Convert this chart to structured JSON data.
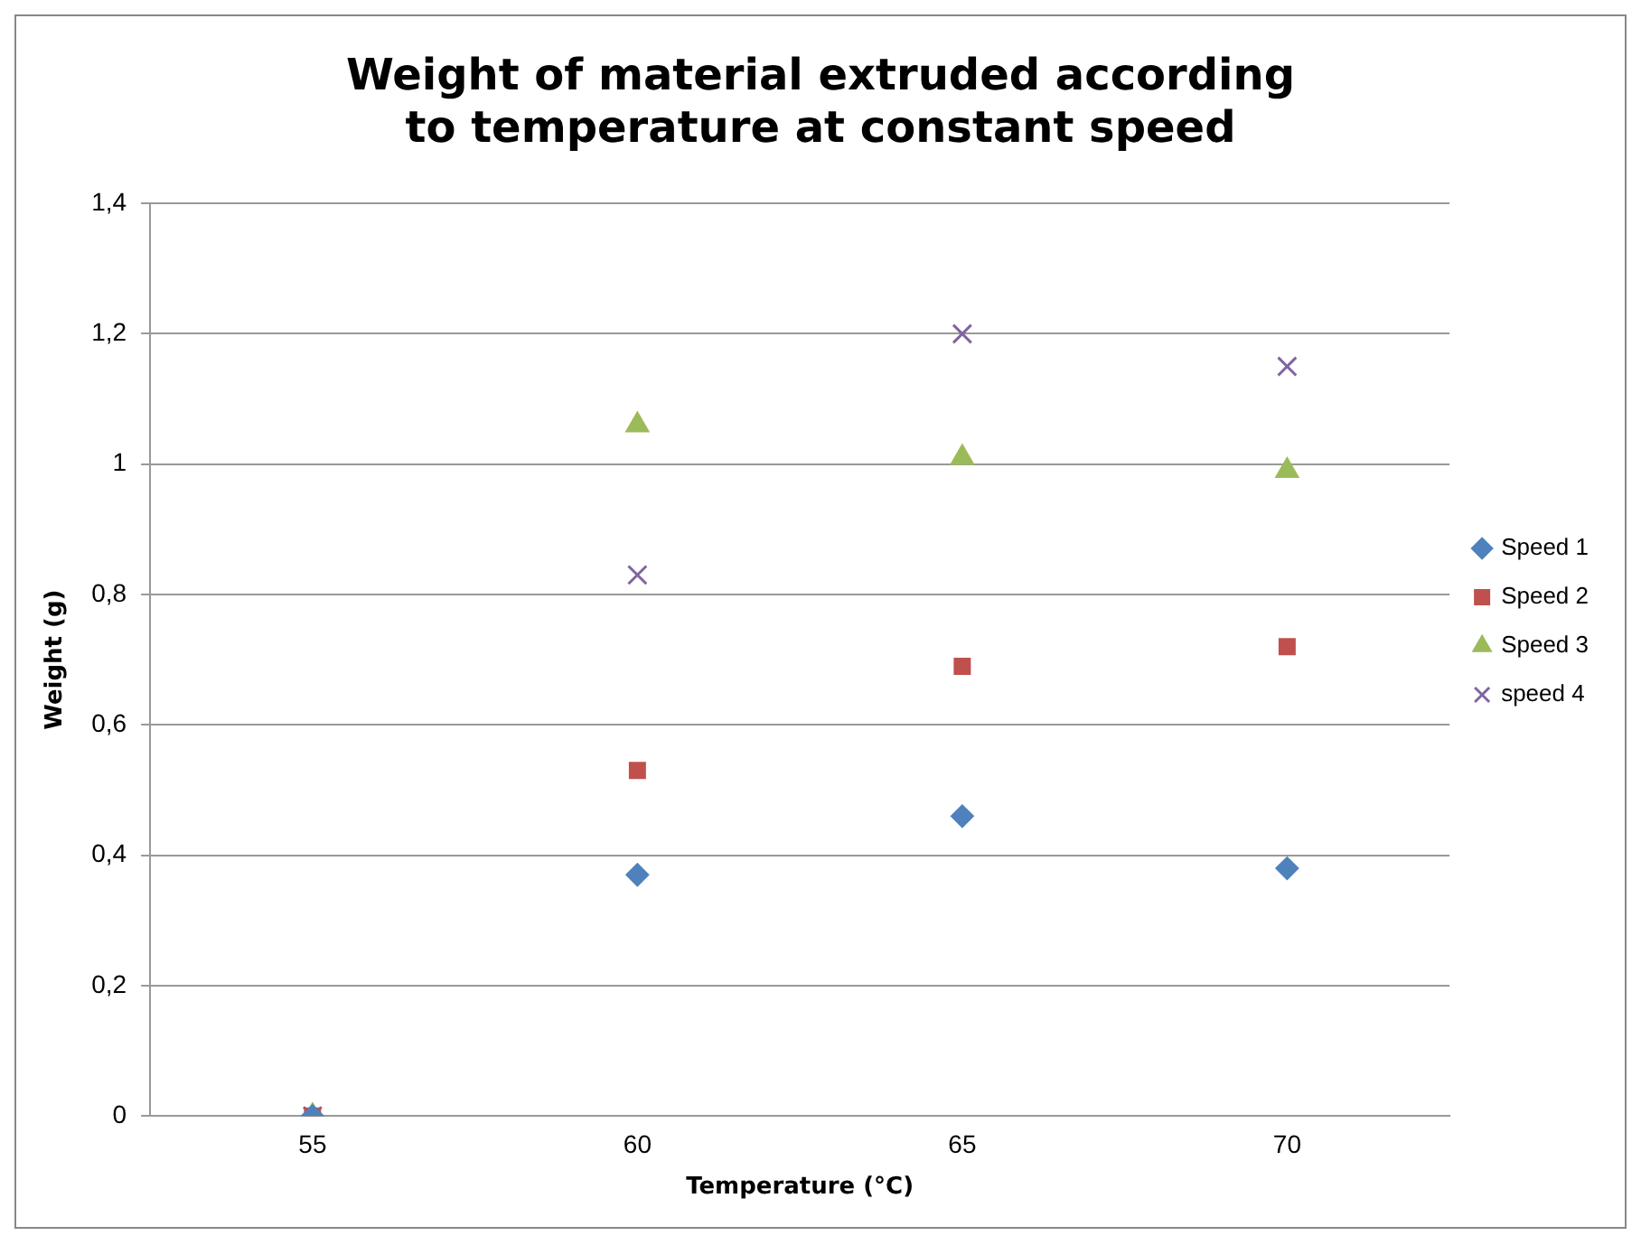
{
  "chart_data": {
    "type": "scatter",
    "title": "Weight of material extruded according to temperature at constant speed",
    "xlabel": "Temperature (°C)",
    "ylabel": "Weight (g)",
    "categories": [
      "55",
      "60",
      "65",
      "70"
    ],
    "series": [
      {
        "name": "Speed 1",
        "color": "#4f81bd",
        "marker": "diamond",
        "values": [
          0,
          0.37,
          0.46,
          0.38
        ]
      },
      {
        "name": "Speed 2",
        "color": "#c0504d",
        "marker": "square",
        "values": [
          0,
          0.53,
          0.69,
          0.72
        ]
      },
      {
        "name": "Speed 3",
        "color": "#9bbb59",
        "marker": "triangle",
        "values": [
          0,
          1.06,
          1.01,
          0.99
        ]
      },
      {
        "name": "speed 4",
        "color": "#8064a2",
        "marker": "cross",
        "values": [
          0,
          0.83,
          1.2,
          1.15
        ]
      }
    ],
    "ylim": [
      0,
      1.4
    ],
    "yticks": [
      0,
      {
        "value": 0.2,
        "label": "0,2"
      },
      {
        "value": 0.4,
        "label": "0,4"
      },
      {
        "value": 0.6,
        "label": "0,6"
      },
      {
        "value": 0.8,
        "label": "0,8"
      },
      1,
      {
        "value": 1.2,
        "label": "1,2"
      },
      {
        "value": 1.4,
        "label": "1,4"
      }
    ],
    "grid": "y",
    "legend": "right"
  }
}
